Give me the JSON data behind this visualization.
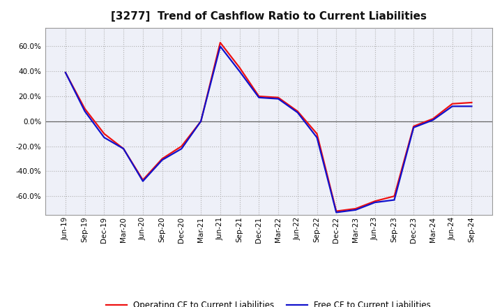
{
  "title": "[3277]  Trend of Cashflow Ratio to Current Liabilities",
  "xlabel": "",
  "ylabel": "",
  "ylim": [
    -0.75,
    0.75
  ],
  "yticks": [
    -0.6,
    -0.4,
    -0.2,
    0.0,
    0.2,
    0.4,
    0.6
  ],
  "legend_labels": [
    "Operating CF to Current Liabilities",
    "Free CF to Current Liabilities"
  ],
  "legend_colors": [
    "#ee1111",
    "#1111cc"
  ],
  "x_labels": [
    "Jun-19",
    "Sep-19",
    "Dec-19",
    "Mar-20",
    "Jun-20",
    "Sep-20",
    "Dec-20",
    "Mar-21",
    "Jun-21",
    "Sep-21",
    "Dec-21",
    "Mar-22",
    "Jun-22",
    "Sep-22",
    "Dec-22",
    "Mar-23",
    "Jun-23",
    "Sep-23",
    "Dec-23",
    "Mar-24",
    "Jun-24",
    "Sep-24"
  ],
  "operating_cf": [
    0.39,
    0.1,
    -0.1,
    -0.22,
    -0.47,
    -0.3,
    -0.2,
    0.0,
    0.63,
    0.43,
    0.2,
    0.19,
    0.08,
    -0.1,
    -0.72,
    -0.7,
    -0.64,
    -0.6,
    -0.04,
    0.02,
    0.14,
    0.15
  ],
  "free_cf": [
    0.39,
    0.08,
    -0.13,
    -0.22,
    -0.48,
    -0.31,
    -0.22,
    0.0,
    0.6,
    0.4,
    0.19,
    0.18,
    0.07,
    -0.13,
    -0.73,
    -0.71,
    -0.65,
    -0.63,
    -0.05,
    0.01,
    0.12,
    0.12
  ],
  "background_color": "#ffffff",
  "grid_color": "#b0b0b0",
  "plot_bg_color": "#eef0f8",
  "line_width": 1.6,
  "title_fontsize": 11,
  "tick_fontsize": 7.5,
  "legend_fontsize": 8.5
}
